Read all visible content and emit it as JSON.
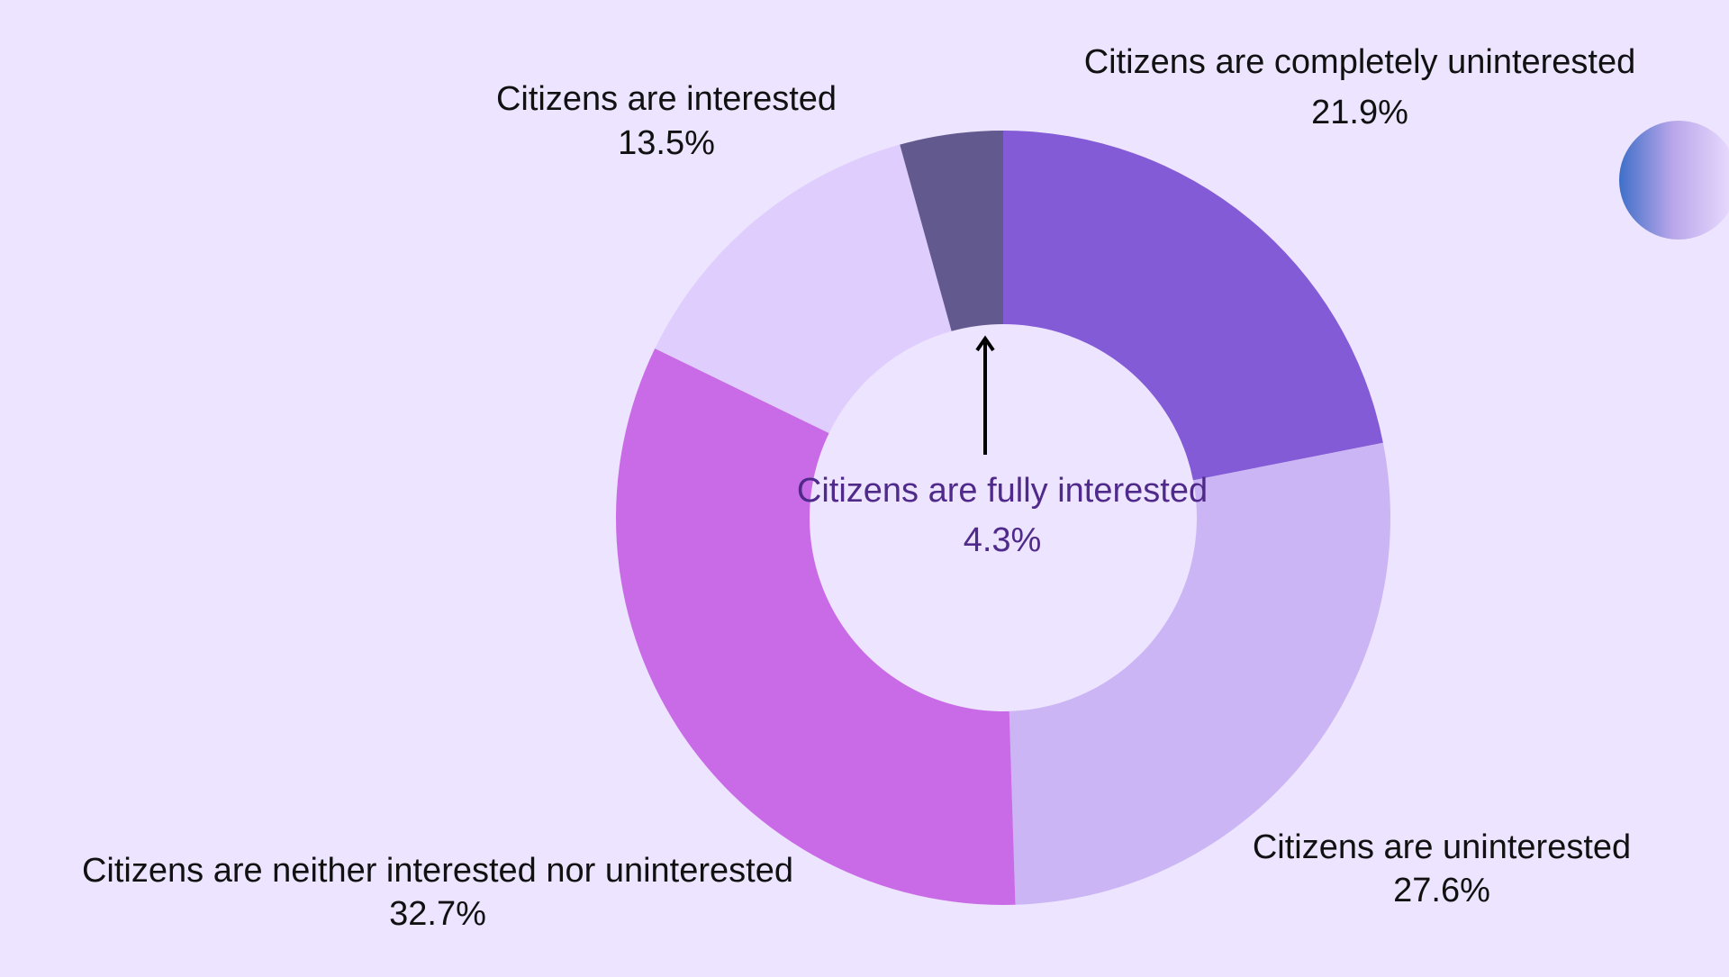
{
  "chart_data": {
    "type": "pie",
    "style": "donut",
    "title": "",
    "start_at": "top",
    "direction": "clockwise",
    "slices": [
      {
        "label": "Citizens are completely uninterested",
        "value_label": "21.9%",
        "value": 21.9,
        "color": "#835bd6"
      },
      {
        "label": "Citizens are uninterested",
        "value_label": "27.6%",
        "value": 27.6,
        "color": "#cbb5f5"
      },
      {
        "label": "Citizens are neither interested nor uninterested",
        "value_label": "32.7%",
        "value": 32.7,
        "color": "#c96be6"
      },
      {
        "label": "Citizens are interested",
        "value_label": "13.5%",
        "value": 13.5,
        "color": "#dfcdfd"
      },
      {
        "label": "Citizens are fully interested",
        "value_label": "4.3%",
        "value": 4.3,
        "color": "#625a8e"
      }
    ],
    "background_color": "#ede4ff",
    "highlight_label_color": "#4f2a8a"
  }
}
